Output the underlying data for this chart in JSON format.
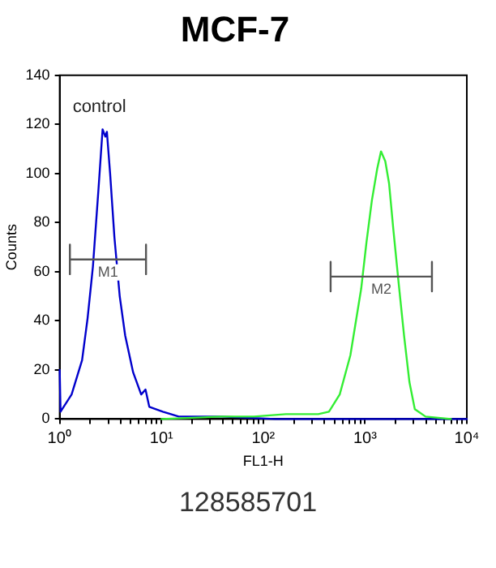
{
  "chart_data": {
    "type": "line",
    "title": "MCF-7",
    "xlabel": "FL1-H",
    "ylabel": "Counts",
    "log": "x",
    "grid": false,
    "legend": false,
    "marker": "none",
    "xlim": [
      1,
      10000
    ],
    "xticks": [
      {
        "value": 1,
        "label": "10⁰"
      },
      {
        "value": 2,
        "label": null
      },
      {
        "value": 3,
        "label": null
      },
      {
        "value": 4,
        "label": null
      },
      {
        "value": 5,
        "label": null
      },
      {
        "value": 6,
        "label": null
      },
      {
        "value": 7,
        "label": null
      },
      {
        "value": 8,
        "label": null
      },
      {
        "value": 9,
        "label": null
      },
      {
        "value": 10,
        "label": "10¹"
      },
      {
        "value": 20,
        "label": null
      },
      {
        "value": 30,
        "label": null
      },
      {
        "value": 40,
        "label": null
      },
      {
        "value": 50,
        "label": null
      },
      {
        "value": 60,
        "label": null
      },
      {
        "value": 70,
        "label": null
      },
      {
        "value": 80,
        "label": null
      },
      {
        "value": 90,
        "label": null
      },
      {
        "value": 100,
        "label": "10²"
      },
      {
        "value": 200,
        "label": null
      },
      {
        "value": 300,
        "label": null
      },
      {
        "value": 400,
        "label": null
      },
      {
        "value": 500,
        "label": null
      },
      {
        "value": 600,
        "label": null
      },
      {
        "value": 700,
        "label": null
      },
      {
        "value": 800,
        "label": null
      },
      {
        "value": 900,
        "label": null
      },
      {
        "value": 1000,
        "label": "10³"
      },
      {
        "value": 2000,
        "label": null
      },
      {
        "value": 3000,
        "label": null
      },
      {
        "value": 4000,
        "label": null
      },
      {
        "value": 5000,
        "label": null
      },
      {
        "value": 6000,
        "label": null
      },
      {
        "value": 7000,
        "label": null
      },
      {
        "value": 8000,
        "label": null
      },
      {
        "value": 9000,
        "label": null
      },
      {
        "value": 10000,
        "label": "10⁴"
      }
    ],
    "ylim": [
      0,
      140
    ],
    "yticks": [
      0,
      20,
      40,
      60,
      80,
      100,
      120,
      140
    ],
    "series": [
      {
        "name": "control",
        "color": "#0000cc",
        "x": [
          1.0,
          1.02,
          1.31,
          1.66,
          1.88,
          2.12,
          2.4,
          2.64,
          2.81,
          2.91,
          3.13,
          3.45,
          3.89,
          4.4,
          5.27,
          6.32,
          6.97,
          7.59,
          10.3,
          14.8,
          39,
          131,
          1490,
          10000
        ],
        "values": [
          20,
          3,
          10,
          24,
          41,
          62,
          93,
          118,
          115,
          117,
          100,
          74,
          50,
          34,
          19,
          10,
          12,
          5,
          3,
          1,
          1,
          0,
          0,
          0
        ]
      },
      {
        "color": "#33ee33",
        "x": [
          10,
          39,
          81,
          167,
          347,
          442,
          564,
          718,
          916,
          1033,
          1167,
          1318,
          1435,
          1581,
          1722,
          1899,
          2143,
          2418,
          2731,
          3083,
          3930,
          7000
        ],
        "values": [
          0,
          1,
          1,
          2,
          2,
          3,
          10,
          26,
          53,
          72,
          89,
          102,
          109,
          105,
          96,
          77,
          55,
          34,
          15,
          4,
          1,
          0
        ]
      },
      {
        "name": "M1",
        "color": "#555555",
        "x": [
          1.26,
          1.26,
          1.26,
          7.05,
          7.05,
          7.05
        ],
        "values": [
          71,
          59,
          65,
          65,
          71,
          59
        ]
      },
      {
        "name": "M2",
        "color": "#555555",
        "x": [
          459,
          459,
          459,
          4543,
          4543,
          4543
        ],
        "values": [
          64,
          52,
          58,
          58,
          64,
          52
        ]
      }
    ],
    "annotations": [
      "128585701"
    ]
  }
}
